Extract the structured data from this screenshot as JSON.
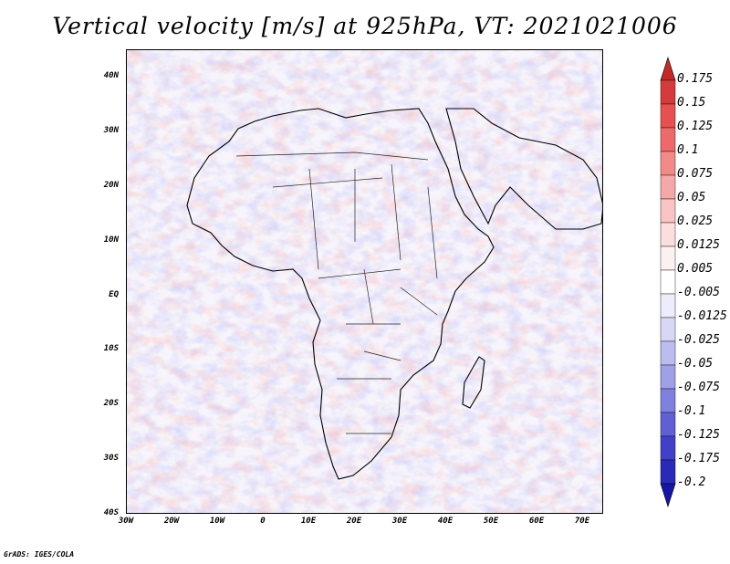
{
  "title": "Vertical velocity [m/s] at 925hPa, VT: 2021021006",
  "credit": "GrADS: IGES/COLA",
  "map": {
    "lon_range": [
      -30,
      75
    ],
    "lat_range": [
      -40,
      45
    ],
    "lat_ticks": [
      "40N",
      "30N",
      "20N",
      "10N",
      "EQ",
      "10S",
      "20S",
      "30S",
      "40S"
    ],
    "lon_ticks": [
      "30W",
      "20W",
      "10W",
      "0",
      "10E",
      "20E",
      "30E",
      "40E",
      "50E",
      "60E",
      "70E"
    ]
  },
  "colorbar": {
    "labels": [
      "0.175",
      "0.15",
      "0.125",
      "0.1",
      "0.075",
      "0.05",
      "0.025",
      "0.0125",
      "0.005",
      "-0.005",
      "-0.0125",
      "-0.025",
      "-0.05",
      "-0.075",
      "-0.1",
      "-0.125",
      "-0.175",
      "-0.2"
    ],
    "colors": [
      "#c42a2a",
      "#d63b3b",
      "#e65050",
      "#ee6a6a",
      "#f28a8a",
      "#f5a8a8",
      "#f8c4c4",
      "#fbdede",
      "#fdf0f0",
      "#ffffff",
      "#ececfb",
      "#d8d8f6",
      "#bcbcf0",
      "#a0a0e8",
      "#8080df",
      "#6060d4",
      "#4040c8",
      "#2a2ab8",
      "#1616a4"
    ]
  }
}
